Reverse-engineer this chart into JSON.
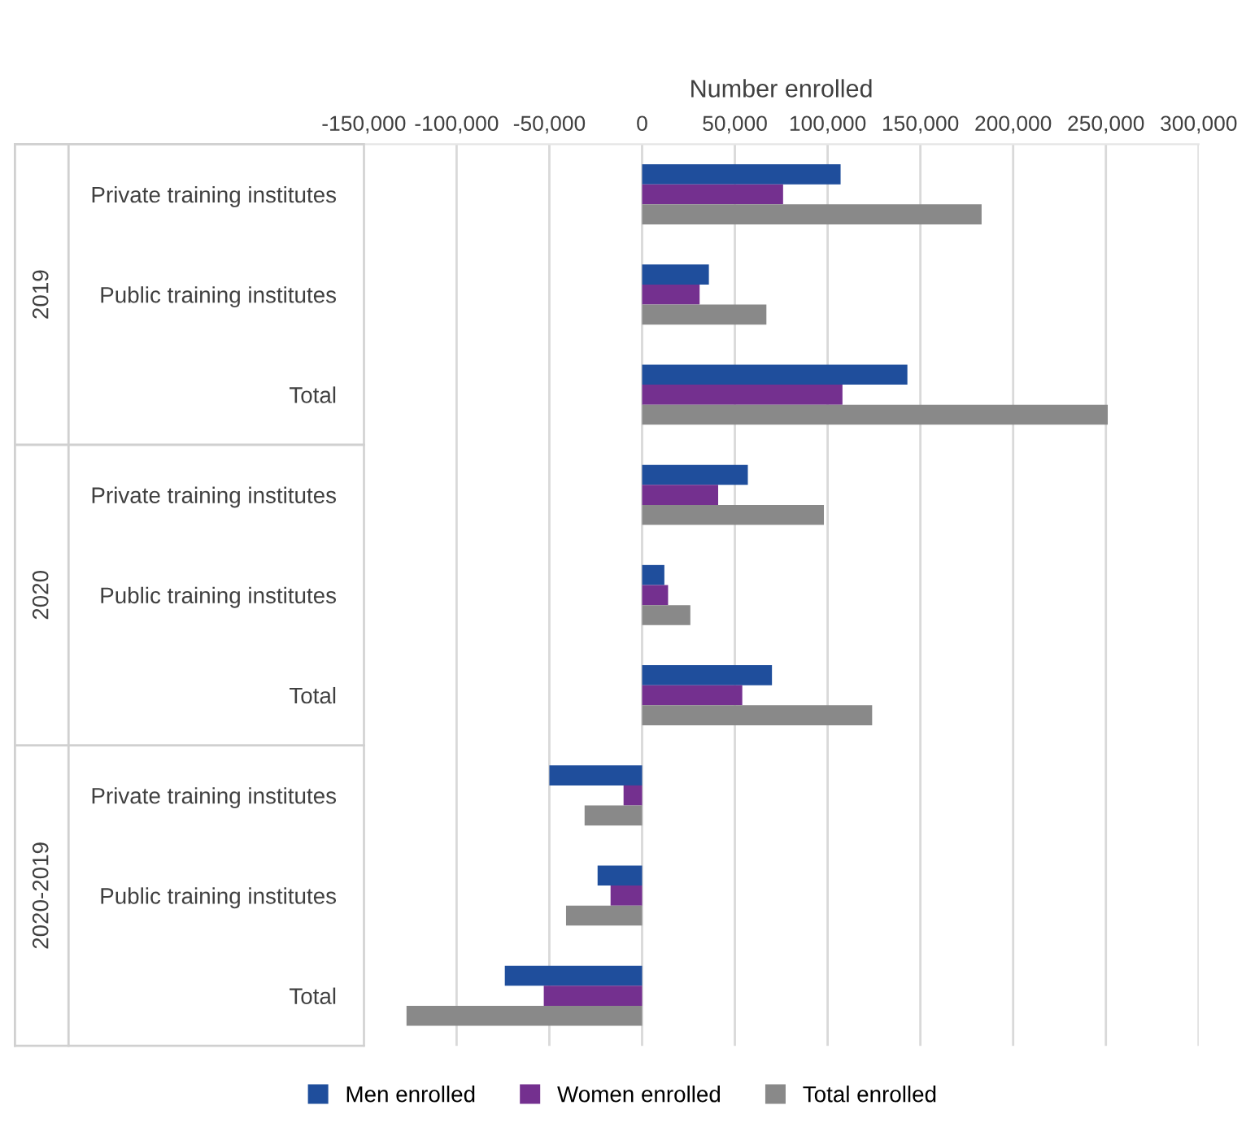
{
  "chart_data": {
    "type": "bar",
    "orientation": "horizontal",
    "xlabel": "Number enrolled",
    "categories": [
      "Private training institutes",
      "Public training institutes",
      "Total",
      "Private training institutes",
      "Public training institutes",
      "Total",
      "Private training institutes",
      "Public training institutes",
      "Total"
    ],
    "annotations": [
      "2019",
      "2020",
      "2020-2019"
    ],
    "series": [
      {
        "name": "Men enrolled",
        "color": "#1f4e9c",
        "values": [
          107000,
          36000,
          143000,
          57000,
          12000,
          70000,
          -50000,
          -24000,
          -74000
        ]
      },
      {
        "name": "Women enrolled",
        "color": "#74308f",
        "values": [
          76000,
          31000,
          108000,
          41000,
          14000,
          54000,
          -10000,
          -17000,
          -53000
        ]
      },
      {
        "name": "Total enrolled",
        "color": "#898989",
        "values": [
          183000,
          67000,
          251000,
          98000,
          26000,
          124000,
          -31000,
          -41000,
          -127000
        ]
      }
    ],
    "xlim": [
      -150000,
      300000
    ],
    "xticks": [
      {
        "value": -150000,
        "label": "-150,000"
      },
      {
        "value": -100000,
        "label": "-100,000"
      },
      {
        "value": -50000,
        "label": "-50,000"
      },
      0,
      {
        "value": 50000,
        "label": "50,000"
      },
      {
        "value": 100000,
        "label": "100,000"
      },
      {
        "value": 150000,
        "label": "150,000"
      },
      {
        "value": 200000,
        "label": "200,000"
      },
      {
        "value": 250000,
        "label": "250,000"
      },
      {
        "value": 300000,
        "label": "300,000"
      }
    ],
    "grid": "x",
    "legend": "bottom"
  }
}
